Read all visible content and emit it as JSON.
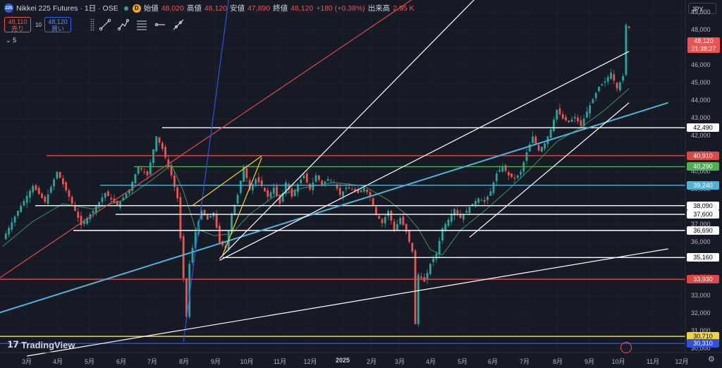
{
  "header": {
    "logo_text": "225",
    "symbol": "Nikkei 225 Futures · 1日 · OSE",
    "d_badge": "D",
    "open_label": "始値",
    "open": "48,020",
    "high_label": "高値",
    "high": "48,120",
    "low_label": "安値",
    "low": "47,890",
    "close_label": "終値",
    "close": "48,120",
    "change": "+180 (+0.38%)",
    "volume_label": "出来高",
    "volume": "2.95 K"
  },
  "trade": {
    "sell_price": "48,110",
    "sell_label": "売り",
    "qty": "10",
    "buy_price": "48,120",
    "buy_label": "買い"
  },
  "indicator_toggle": "5",
  "currency": "JPY",
  "branding": "TradingView",
  "colors": {
    "up": "#26a69a",
    "down": "#ef5350",
    "bg": "#161a25",
    "cyan": "#4fb3d9",
    "red_line": "#e04848",
    "yellow": "#f0d43a",
    "blue": "#3050e0",
    "green": "#4caf50"
  },
  "drawing_tools": [
    "trend-line-tool",
    "path-tool",
    "fib-tool",
    "ray-tool",
    "extended-line-tool"
  ],
  "chart_data": {
    "type": "candlestick",
    "x_axis_labels": [
      "3月",
      "4月",
      "5月",
      "6月",
      "7月",
      "8月",
      "9月",
      "10月",
      "11月",
      "12月",
      "2025",
      "2月",
      "3月",
      "4月",
      "5月",
      "6月",
      "7月",
      "8月",
      "9月",
      "10月",
      "11月",
      "12月"
    ],
    "y_axis_ticks": [
      "49,000",
      "48,000",
      "47,000",
      "46,000",
      "45,000",
      "44,000",
      "43,000",
      "42,000",
      "41,000",
      "40,000",
      "39,000",
      "38,000",
      "37,000",
      "36,000",
      "35,000",
      "34,000",
      "33,000",
      "32,000",
      "31,000",
      "30,000"
    ],
    "ylim": [
      29800,
      49700
    ],
    "last_price": "48,120",
    "countdown": "21:38:27",
    "horizontal_levels": [
      {
        "value": 42490,
        "label": "42,490",
        "color": "#ffffff"
      },
      {
        "value": 40910,
        "label": "40,910",
        "color": "#e04848"
      },
      {
        "value": 40290,
        "label": "40,290",
        "color": "#4caf50"
      },
      {
        "value": 39240,
        "label": "39,240",
        "color": "#4fb3d9"
      },
      {
        "value": 38090,
        "label": "38,090",
        "color": "#ffffff"
      },
      {
        "value": 37600,
        "label": "37,600",
        "color": "#ffffff"
      },
      {
        "value": 36690,
        "label": "36,690",
        "color": "#ffffff"
      },
      {
        "value": 35160,
        "label": "35,160",
        "color": "#ffffff"
      },
      {
        "value": 33930,
        "label": "33,930",
        "color": "#e04848"
      },
      {
        "value": 30710,
        "label": "30,710",
        "color": "#f0d43a"
      },
      {
        "value": 30310,
        "label": "30,310",
        "color": "#3050e0"
      }
    ],
    "price_path": [
      [
        0,
        36200
      ],
      [
        5,
        37800
      ],
      [
        10,
        39200
      ],
      [
        14,
        38300
      ],
      [
        18,
        40000
      ],
      [
        22,
        38600
      ],
      [
        26,
        37000
      ],
      [
        30,
        37800
      ],
      [
        34,
        38800
      ],
      [
        38,
        38100
      ],
      [
        42,
        39000
      ],
      [
        45,
        40300
      ],
      [
        48,
        39800
      ],
      [
        51,
        42000
      ],
      [
        53,
        41300
      ],
      [
        56,
        39800
      ],
      [
        58,
        38500
      ],
      [
        60,
        34000
      ],
      [
        61,
        31800
      ],
      [
        62,
        34800
      ],
      [
        64,
        36600
      ],
      [
        66,
        37800
      ],
      [
        68,
        37300
      ],
      [
        70,
        37700
      ],
      [
        72,
        36000
      ],
      [
        74,
        35700
      ],
      [
        76,
        37600
      ],
      [
        78,
        38700
      ],
      [
        80,
        40300
      ],
      [
        82,
        39000
      ],
      [
        84,
        39600
      ],
      [
        86,
        39200
      ],
      [
        88,
        38600
      ],
      [
        90,
        39100
      ],
      [
        92,
        38200
      ],
      [
        94,
        39400
      ],
      [
        96,
        38600
      ],
      [
        98,
        39300
      ],
      [
        100,
        39800
      ],
      [
        102,
        39000
      ],
      [
        104,
        39800
      ],
      [
        106,
        39300
      ],
      [
        108,
        39600
      ],
      [
        110,
        39400
      ],
      [
        112,
        38700
      ],
      [
        114,
        39100
      ],
      [
        116,
        39000
      ],
      [
        118,
        38800
      ],
      [
        120,
        39100
      ],
      [
        122,
        38600
      ],
      [
        124,
        37600
      ],
      [
        126,
        37100
      ],
      [
        128,
        37800
      ],
      [
        130,
        36700
      ],
      [
        132,
        37400
      ],
      [
        134,
        36600
      ],
      [
        136,
        35500
      ],
      [
        137,
        31400
      ],
      [
        138,
        34200
      ],
      [
        140,
        33800
      ],
      [
        142,
        34800
      ],
      [
        144,
        35400
      ],
      [
        146,
        36800
      ],
      [
        148,
        37300
      ],
      [
        150,
        37900
      ],
      [
        152,
        37400
      ],
      [
        154,
        37800
      ],
      [
        156,
        38200
      ],
      [
        158,
        38500
      ],
      [
        160,
        38300
      ],
      [
        162,
        38900
      ],
      [
        164,
        39900
      ],
      [
        166,
        40300
      ],
      [
        168,
        39800
      ],
      [
        170,
        39600
      ],
      [
        172,
        40000
      ],
      [
        174,
        41100
      ],
      [
        176,
        42000
      ],
      [
        178,
        41200
      ],
      [
        180,
        41600
      ],
      [
        182,
        42400
      ],
      [
        184,
        43500
      ],
      [
        186,
        43000
      ],
      [
        188,
        42800
      ],
      [
        190,
        43100
      ],
      [
        192,
        42600
      ],
      [
        194,
        43400
      ],
      [
        196,
        44100
      ],
      [
        198,
        44800
      ],
      [
        200,
        45100
      ],
      [
        202,
        45600
      ],
      [
        204,
        44700
      ],
      [
        206,
        45400
      ],
      [
        207,
        48300
      ],
      [
        208,
        48120
      ]
    ],
    "ma_path": [
      [
        0,
        35800
      ],
      [
        10,
        37200
      ],
      [
        20,
        38200
      ],
      [
        30,
        37900
      ],
      [
        40,
        38400
      ],
      [
        50,
        39600
      ],
      [
        56,
        40400
      ],
      [
        60,
        38900
      ],
      [
        64,
        36800
      ],
      [
        70,
        36400
      ],
      [
        76,
        36500
      ],
      [
        82,
        37600
      ],
      [
        90,
        38600
      ],
      [
        100,
        39100
      ],
      [
        110,
        39400
      ],
      [
        120,
        39200
      ],
      [
        128,
        38400
      ],
      [
        134,
        37600
      ],
      [
        138,
        36800
      ],
      [
        142,
        35600
      ],
      [
        146,
        35300
      ],
      [
        152,
        36700
      ],
      [
        160,
        37800
      ],
      [
        168,
        39000
      ],
      [
        176,
        40300
      ],
      [
        184,
        41700
      ],
      [
        192,
        42500
      ],
      [
        200,
        43500
      ],
      [
        208,
        44700
      ]
    ],
    "trend_lines": [
      {
        "color": "#4fb3d9",
        "from": [
          -2,
          32000
        ],
        "to": [
          221,
          43900
        ]
      },
      {
        "color": "#e04848",
        "from": [
          -2,
          33900
        ],
        "to": [
          147,
          51000
        ]
      },
      {
        "color": "#3050e0",
        "from": [
          60,
          30400
        ],
        "to": [
          76,
          51000
        ]
      },
      {
        "color": "#ffffff",
        "from": [
          8,
          29600
        ],
        "to": [
          221,
          35650
        ]
      },
      {
        "color": "#ffffff",
        "from": [
          72,
          35100
        ],
        "to": [
          164,
          51000
        ]
      },
      {
        "color": "#ffffff",
        "from": [
          72,
          35000
        ],
        "to": [
          208,
          46800
        ]
      },
      {
        "color": "#ffffff",
        "from": [
          155,
          36300
        ],
        "to": [
          208,
          43900
        ]
      },
      {
        "color": "#f0d43a",
        "from": [
          63,
          38100
        ],
        "to": [
          86,
          40900
        ]
      },
      {
        "color": "#f0d43a",
        "from": [
          73,
          35300
        ],
        "to": [
          86,
          40800
        ]
      }
    ]
  }
}
